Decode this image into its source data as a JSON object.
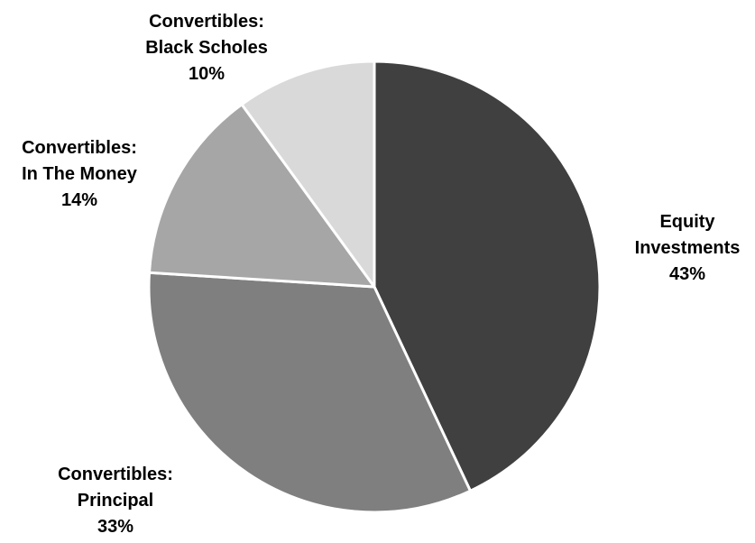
{
  "chart_data": {
    "type": "pie",
    "title": "",
    "start_angle_deg": 0,
    "direction": "clockwise",
    "slices": [
      {
        "label_lines": [
          "Equity",
          "Investments"
        ],
        "value": 43,
        "value_label": "43%",
        "color": "#404040"
      },
      {
        "label_lines": [
          "Convertibles:",
          "Principal"
        ],
        "value": 33,
        "value_label": "33%",
        "color": "#7f7f7f"
      },
      {
        "label_lines": [
          "Convertibles:",
          "In The Money"
        ],
        "value": 14,
        "value_label": "14%",
        "color": "#a6a6a6"
      },
      {
        "label_lines": [
          "Convertibles:",
          "Black Scholes"
        ],
        "value": 10,
        "value_label": "10%",
        "color": "#d9d9d9"
      }
    ],
    "legend": "none",
    "grid": false
  }
}
